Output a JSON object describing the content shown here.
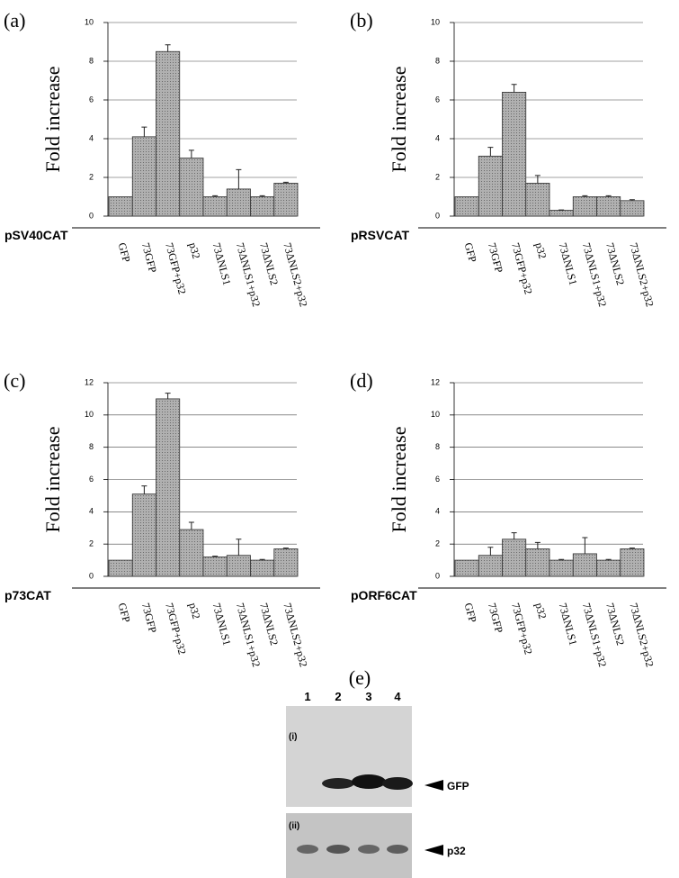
{
  "chart_data": [
    {
      "type": "bar",
      "panel_label": "(a)",
      "ylabel": "Fold increase",
      "reporter": "pSV40CAT",
      "categories": [
        "GFP",
        "73GFP",
        "73GFP+p32",
        "p32",
        "73ΔNLS1",
        "73ΔNLS1+p32",
        "73ΔNLS2",
        "73ΔNLS2+p32"
      ],
      "values": [
        1,
        4.1,
        8.5,
        3.0,
        1.0,
        1.4,
        1.0,
        1.7
      ],
      "errors": [
        0,
        0.5,
        0.35,
        0.4,
        0.05,
        1.0,
        0.05,
        0.05
      ],
      "ylim": [
        0,
        10
      ],
      "yticks": [
        0,
        2,
        4,
        6,
        8,
        10
      ],
      "color": "#a8a8a8",
      "grid": true
    },
    {
      "type": "bar",
      "panel_label": "(b)",
      "ylabel": "Fold increase",
      "reporter": "pRSVCAT",
      "categories": [
        "GFP",
        "73GFP",
        "73GFP+p32",
        "p32",
        "73ΔNLS1",
        "73ΔNLS1+p32",
        "73ΔNLS2",
        "73ΔNLS2+p32"
      ],
      "values": [
        1,
        3.1,
        6.4,
        1.7,
        0.3,
        1.0,
        1.0,
        0.8
      ],
      "errors": [
        0,
        0.45,
        0.4,
        0.4,
        0.02,
        0.05,
        0.05,
        0.05
      ],
      "ylim": [
        0,
        10
      ],
      "yticks": [
        0,
        2,
        4,
        6,
        8,
        10
      ],
      "color": "#a8a8a8",
      "grid": true
    },
    {
      "type": "bar",
      "panel_label": "(c)",
      "ylabel": "Fold increase",
      "reporter": "p73CAT",
      "categories": [
        "GFP",
        "73GFP",
        "73GFP+p32",
        "p32",
        "73ΔNLS1",
        "73ΔNLS1+p32",
        "73ΔNLS2",
        "73ΔNLS2+p32"
      ],
      "values": [
        1,
        5.1,
        11,
        2.9,
        1.2,
        1.3,
        1.0,
        1.7
      ],
      "errors": [
        0,
        0.5,
        0.35,
        0.45,
        0.05,
        1.0,
        0.05,
        0.05
      ],
      "ylim": [
        0,
        12
      ],
      "yticks": [
        0,
        2,
        4,
        6,
        8,
        10,
        12
      ],
      "color": "#a8a8a8",
      "grid": true
    },
    {
      "type": "bar",
      "panel_label": "(d)",
      "ylabel": "Fold increase",
      "reporter": "pORF6CAT",
      "categories": [
        "GFP",
        "73GFP",
        "73GFP+p32",
        "p32",
        "73ΔNLS1",
        "73ΔNLS1+p32",
        "73ΔNLS2",
        "73ΔNLS2+p32"
      ],
      "values": [
        1,
        1.3,
        2.3,
        1.7,
        1.0,
        1.4,
        1.0,
        1.7
      ],
      "errors": [
        0,
        0.5,
        0.4,
        0.4,
        0.05,
        1.0,
        0.05,
        0.05
      ],
      "ylim": [
        0,
        12
      ],
      "yticks": [
        0,
        2,
        4,
        6,
        8,
        10,
        12
      ],
      "color": "#a8a8a8",
      "grid": true
    }
  ],
  "blot": {
    "panel_label": "(e)",
    "lanes": [
      "1",
      "2",
      "3",
      "4"
    ],
    "rows": [
      "(i)",
      "(ii)"
    ],
    "bands": [
      "GFP",
      "p32"
    ]
  }
}
